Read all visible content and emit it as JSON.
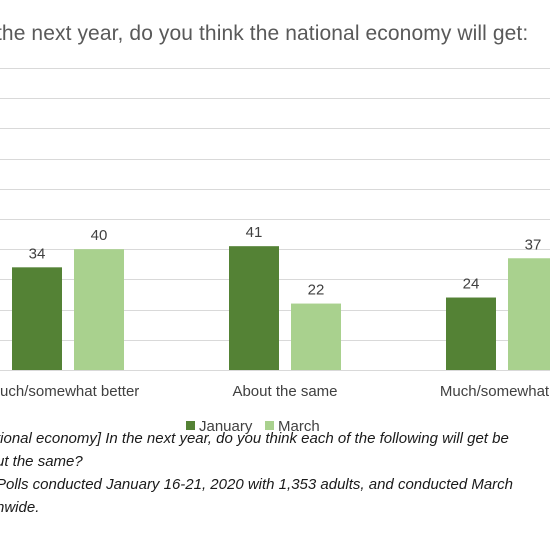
{
  "chart_data": {
    "type": "bar",
    "title": "the next year, do you think the national economy will get:",
    "categories": [
      "luch/somewhat better",
      "About the same",
      "Much/somewhat w"
    ],
    "series": [
      {
        "name": "January",
        "values": [
          34,
          41,
          24
        ],
        "color": "#548235"
      },
      {
        "name": "March",
        "values": [
          40,
          22,
          37
        ],
        "color": "#a9d18e"
      }
    ],
    "ylim": [
      0,
      100
    ],
    "grid": true,
    "legend": "bottom-center"
  },
  "footnotes": [
    "tional economy] In the next year, do you think each of the following will get be",
    "ut the same?",
    "Polls conducted January 16-21, 2020 with 1,353 adults, and conducted March",
    "nwide."
  ]
}
